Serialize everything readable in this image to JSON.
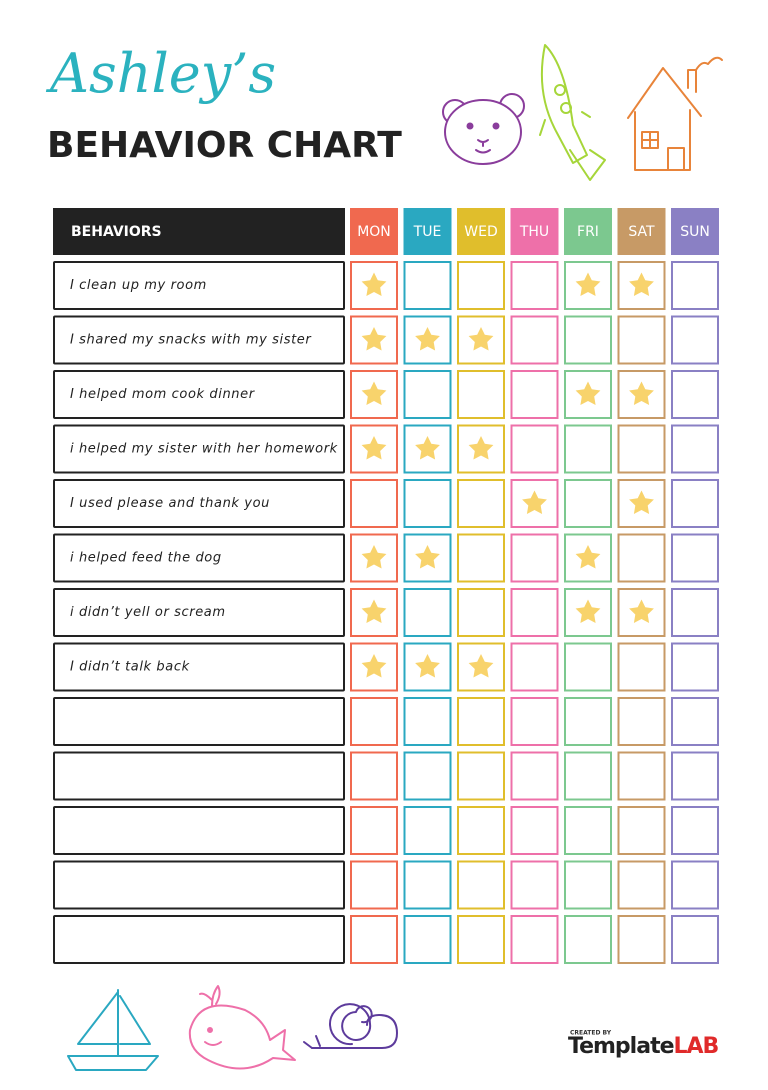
{
  "header": {
    "title": "Ashley’s",
    "subtitle": "BEHAVIOR CHART"
  },
  "table": {
    "header": "BEHAVIORS",
    "days": [
      {
        "label": "MON",
        "color": "#f0694f"
      },
      {
        "label": "TUE",
        "color": "#2aa8c1"
      },
      {
        "label": "WED",
        "color": "#e0be2c"
      },
      {
        "label": "THU",
        "color": "#ee70a9"
      },
      {
        "label": "FRI",
        "color": "#7cc88f"
      },
      {
        "label": "SAT",
        "color": "#c79a66"
      },
      {
        "label": "SUN",
        "color": "#8a80c4"
      }
    ],
    "star_color": "#f8d36c",
    "rows": [
      {
        "label": "I clean up my room",
        "stars": [
          1,
          0,
          0,
          0,
          1,
          1,
          0
        ]
      },
      {
        "label": "I shared my snacks with my sister",
        "stars": [
          1,
          1,
          1,
          0,
          0,
          0,
          0
        ]
      },
      {
        "label": "I helped mom cook dinner",
        "stars": [
          1,
          0,
          0,
          0,
          1,
          1,
          0
        ]
      },
      {
        "label": "i helped my sister with her homework",
        "stars": [
          1,
          1,
          1,
          0,
          0,
          0,
          0
        ]
      },
      {
        "label": "I used please and thank you",
        "stars": [
          0,
          0,
          0,
          1,
          0,
          1,
          0
        ]
      },
      {
        "label": "i helped feed the dog",
        "stars": [
          1,
          1,
          0,
          0,
          1,
          0,
          0
        ]
      },
      {
        "label": "i didn’t yell or scream",
        "stars": [
          1,
          0,
          0,
          0,
          1,
          1,
          0
        ]
      },
      {
        "label": "I didn’t talk back",
        "stars": [
          1,
          1,
          1,
          0,
          0,
          0,
          0
        ]
      },
      {
        "stars": [
          0,
          0,
          0,
          0,
          0,
          0,
          0
        ]
      },
      {
        "stars": [
          0,
          0,
          0,
          0,
          0,
          0,
          0
        ]
      },
      {
        "stars": [
          0,
          0,
          0,
          0,
          0,
          0,
          0
        ]
      },
      {
        "stars": [
          0,
          0,
          0,
          0,
          0,
          0,
          0
        ]
      },
      {
        "stars": [
          0,
          0,
          0,
          0,
          0,
          0,
          0
        ]
      }
    ]
  },
  "footer": {
    "created_by": "CREATED BY",
    "brand": [
      "Template",
      "LAB"
    ]
  }
}
